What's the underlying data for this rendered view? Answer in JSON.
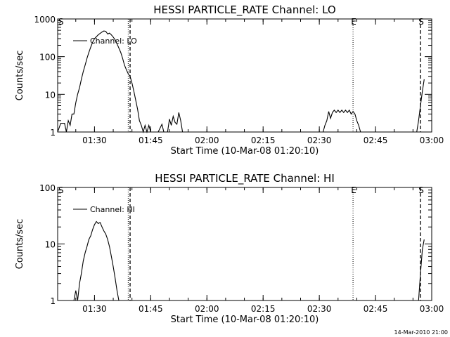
{
  "footer": "14-Mar-2010 21:00",
  "chart_data": [
    {
      "type": "line",
      "title": "HESSI PARTICLE_RATE Channel: LO",
      "xlabel": "Start Time (10-Mar-08 01:20:10)",
      "ylabel": "Counts/sec",
      "yscale": "log",
      "ylim": [
        1,
        1000
      ],
      "xlim": [
        "01:20:10",
        "03:00:00"
      ],
      "x_ticks": [
        "01:30",
        "01:45",
        "02:00",
        "02:15",
        "02:30",
        "02:45",
        "03:00"
      ],
      "y_ticks": [
        "1",
        "10",
        "100",
        "1000"
      ],
      "legend": "top-left",
      "markers": [
        {
          "label": "S",
          "time": "01:20:10",
          "style": "none"
        },
        {
          "label": "",
          "time": "01:39:00",
          "style": "dotted"
        },
        {
          "label": "",
          "time": "01:39:30",
          "style": "dashed"
        },
        {
          "label": "E",
          "time": "02:39:00",
          "style": "dotted"
        },
        {
          "label": "S",
          "time": "02:57:00",
          "style": "dashed"
        }
      ],
      "series": [
        {
          "name": "Channel: LO",
          "points": [
            [
              "01:20:10",
              1
            ],
            [
              "01:21:00",
              1.7
            ],
            [
              "01:22:00",
              1.7
            ],
            [
              "01:22:30",
              1
            ],
            [
              "01:23:00",
              2
            ],
            [
              "01:23:30",
              1.5
            ],
            [
              "01:24:00",
              3
            ],
            [
              "01:24:30",
              3
            ],
            [
              "01:25:00",
              6
            ],
            [
              "01:25:30",
              10
            ],
            [
              "01:26:00",
              15
            ],
            [
              "01:26:30",
              25
            ],
            [
              "01:27:00",
              40
            ],
            [
              "01:27:30",
              60
            ],
            [
              "01:28:00",
              90
            ],
            [
              "01:28:30",
              130
            ],
            [
              "01:29:00",
              180
            ],
            [
              "01:29:30",
              240
            ],
            [
              "01:30:00",
              300
            ],
            [
              "01:31:00",
              380
            ],
            [
              "01:32:00",
              450
            ],
            [
              "01:32:30",
              480
            ],
            [
              "01:33:00",
              470
            ],
            [
              "01:33:30",
              400
            ],
            [
              "01:34:00",
              420
            ],
            [
              "01:34:30",
              380
            ],
            [
              "01:35:00",
              330
            ],
            [
              "01:35:30",
              280
            ],
            [
              "01:36:00",
              220
            ],
            [
              "01:36:30",
              170
            ],
            [
              "01:37:00",
              130
            ],
            [
              "01:37:30",
              90
            ],
            [
              "01:38:00",
              60
            ],
            [
              "01:38:30",
              45
            ],
            [
              "01:39:00",
              35
            ],
            [
              "01:39:30",
              30
            ],
            [
              "01:40:00",
              20
            ],
            [
              "01:40:30",
              12
            ],
            [
              "01:41:00",
              7
            ],
            [
              "01:41:30",
              4
            ],
            [
              "01:42:00",
              2
            ],
            [
              "01:42:30",
              1.5
            ],
            [
              "01:43:00",
              1
            ],
            [
              "01:43:30",
              1.5
            ],
            [
              "01:44:00",
              1
            ],
            [
              "01:44:30",
              1.5
            ],
            [
              "01:45:00",
              1
            ],
            [
              "01:47:00",
              1
            ],
            [
              "01:48:00",
              1.6
            ],
            [
              "01:48:30",
              1
            ],
            [
              "01:49:30",
              1
            ],
            [
              "01:50:00",
              2.2
            ],
            [
              "01:50:30",
              1.5
            ],
            [
              "01:51:00",
              2.6
            ],
            [
              "01:51:30",
              1.8
            ],
            [
              "01:52:00",
              1.6
            ],
            [
              "01:52:30",
              3.3
            ],
            [
              "01:53:00",
              2
            ],
            [
              "01:53:30",
              1
            ],
            [
              "02:31:00",
              1
            ],
            [
              "02:31:30",
              1.5
            ],
            [
              "02:32:00",
              2
            ],
            [
              "02:32:30",
              3.5
            ],
            [
              "02:33:00",
              2.3
            ],
            [
              "02:33:30",
              3.3
            ],
            [
              "02:34:00",
              3.8
            ],
            [
              "02:34:30",
              3.3
            ],
            [
              "02:35:00",
              3.8
            ],
            [
              "02:35:30",
              3.3
            ],
            [
              "02:36:00",
              3.8
            ],
            [
              "02:36:30",
              3.3
            ],
            [
              "02:37:00",
              3.8
            ],
            [
              "02:37:30",
              3.3
            ],
            [
              "02:38:00",
              3.8
            ],
            [
              "02:38:30",
              3
            ],
            [
              "02:39:00",
              3.5
            ],
            [
              "02:39:30",
              3
            ],
            [
              "02:40:00",
              2
            ],
            [
              "02:40:30",
              1.5
            ],
            [
              "02:41:00",
              1
            ],
            [
              "02:56:00",
              1
            ],
            [
              "02:56:30",
              2
            ],
            [
              "02:57:00",
              5
            ],
            [
              "02:57:30",
              12
            ],
            [
              "02:58:00",
              25
            ]
          ]
        }
      ]
    },
    {
      "type": "line",
      "title": "HESSI PARTICLE_RATE Channel: HI",
      "xlabel": "Start Time (10-Mar-08 01:20:10)",
      "ylabel": "Counts/sec",
      "yscale": "log",
      "ylim": [
        1,
        100
      ],
      "xlim": [
        "01:20:10",
        "03:00:00"
      ],
      "x_ticks": [
        "01:30",
        "01:45",
        "02:00",
        "02:15",
        "02:30",
        "02:45",
        "03:00"
      ],
      "y_ticks": [
        "1",
        "10",
        "100"
      ],
      "legend": "top-left",
      "markers": [
        {
          "label": "S",
          "time": "01:20:10",
          "style": "none"
        },
        {
          "label": "",
          "time": "01:39:00",
          "style": "dotted"
        },
        {
          "label": "",
          "time": "01:39:30",
          "style": "dashed"
        },
        {
          "label": "E",
          "time": "02:39:00",
          "style": "dotted"
        },
        {
          "label": "S",
          "time": "02:57:00",
          "style": "dashed"
        }
      ],
      "series": [
        {
          "name": "Channel: HI",
          "points": [
            [
              "01:24:30",
              1
            ],
            [
              "01:25:00",
              1.5
            ],
            [
              "01:25:30",
              1
            ],
            [
              "01:26:00",
              2
            ],
            [
              "01:26:30",
              3
            ],
            [
              "01:27:00",
              5
            ],
            [
              "01:27:30",
              7
            ],
            [
              "01:28:00",
              9
            ],
            [
              "01:28:30",
              12
            ],
            [
              "01:29:00",
              14
            ],
            [
              "01:29:30",
              18
            ],
            [
              "01:30:00",
              22
            ],
            [
              "01:30:30",
              25
            ],
            [
              "01:31:00",
              23
            ],
            [
              "01:31:30",
              24
            ],
            [
              "01:32:00",
              20
            ],
            [
              "01:32:30",
              17
            ],
            [
              "01:33:00",
              15
            ],
            [
              "01:33:30",
              12
            ],
            [
              "01:34:00",
              9
            ],
            [
              "01:34:30",
              6
            ],
            [
              "01:35:00",
              4
            ],
            [
              "01:35:30",
              2.5
            ],
            [
              "01:36:00",
              1.5
            ],
            [
              "01:36:30",
              1
            ],
            [
              "02:56:30",
              1
            ],
            [
              "02:57:00",
              3
            ],
            [
              "02:57:30",
              8
            ],
            [
              "02:58:00",
              12
            ]
          ]
        }
      ]
    }
  ]
}
